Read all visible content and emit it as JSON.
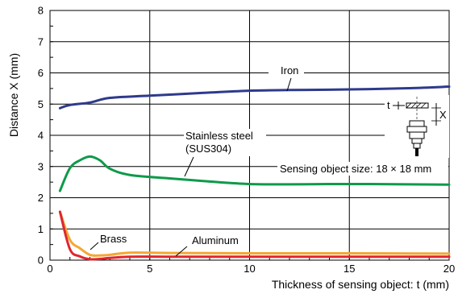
{
  "chart_data": {
    "type": "line",
    "title": "",
    "xlabel": "Thickness of sensing object: t (mm)",
    "ylabel": "Distance X (mm)",
    "xlim": [
      0,
      20
    ],
    "ylim": [
      0,
      8
    ],
    "x_ticks": [
      0,
      5,
      10,
      15,
      20
    ],
    "y_ticks": [
      0,
      1,
      2,
      3,
      4,
      5,
      6,
      7,
      8
    ],
    "grid": true,
    "legend": "none",
    "series": [
      {
        "name": "Iron",
        "color": "#2e3a8c",
        "x": [
          0.5,
          1,
          2,
          3,
          5,
          8,
          10,
          12,
          15,
          18,
          20
        ],
        "y": [
          4.87,
          4.97,
          5.05,
          5.2,
          5.27,
          5.37,
          5.43,
          5.45,
          5.47,
          5.51,
          5.56
        ]
      },
      {
        "name": "Stainless steel (SUS304)",
        "color": "#0f9a4a",
        "x": [
          0.5,
          1,
          1.5,
          2,
          2.5,
          3,
          4,
          6,
          8,
          10,
          12,
          15,
          18,
          20
        ],
        "y": [
          2.22,
          2.95,
          3.2,
          3.32,
          3.2,
          2.93,
          2.73,
          2.62,
          2.52,
          2.44,
          2.43,
          2.44,
          2.43,
          2.42
        ]
      },
      {
        "name": "Brass",
        "color": "#f5a732",
        "x": [
          0.5,
          1,
          1.5,
          2,
          2.5,
          3,
          4,
          6,
          10,
          15,
          20
        ],
        "y": [
          1.55,
          0.65,
          0.38,
          0.17,
          0.15,
          0.17,
          0.24,
          0.23,
          0.22,
          0.22,
          0.21
        ]
      },
      {
        "name": "Aluminum",
        "color": "#e0262e",
        "x": [
          0.5,
          1,
          1.5,
          2,
          2.5,
          3,
          4,
          6,
          10,
          15,
          20
        ],
        "y": [
          1.55,
          0.35,
          0.12,
          0.03,
          0.04,
          0.07,
          0.11,
          0.11,
          0.11,
          0.11,
          0.11
        ]
      }
    ],
    "annotations": [
      {
        "key": "iron",
        "text": "Iron"
      },
      {
        "key": "sus1",
        "text": "Stainless steel"
      },
      {
        "key": "sus2",
        "text": "(SUS304)"
      },
      {
        "key": "size",
        "text": "Sensing object size: 18 × 18 mm"
      },
      {
        "key": "brass",
        "text": "Brass"
      },
      {
        "key": "alum",
        "text": "Aluminum"
      },
      {
        "key": "diag_t",
        "text": "t"
      },
      {
        "key": "diag_x",
        "text": "X"
      }
    ]
  }
}
